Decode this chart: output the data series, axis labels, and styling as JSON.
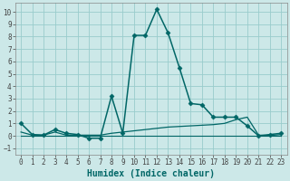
{
  "xlabel": "Humidex (Indice chaleur)",
  "background_color": "#cce8e8",
  "grid_color": "#99cccc",
  "line_color": "#006666",
  "xlim": [
    -0.5,
    23.5
  ],
  "ylim": [
    -1.5,
    10.7
  ],
  "xticks": [
    0,
    1,
    2,
    3,
    4,
    5,
    6,
    7,
    8,
    9,
    10,
    11,
    12,
    13,
    14,
    15,
    16,
    17,
    18,
    19,
    20,
    21,
    22,
    23
  ],
  "yticks": [
    -1,
    0,
    1,
    2,
    3,
    4,
    5,
    6,
    7,
    8,
    9,
    10
  ],
  "series1_x": [
    0,
    1,
    2,
    3,
    4,
    5,
    6,
    7,
    8,
    9,
    10,
    11,
    12,
    13,
    14,
    15,
    16,
    17,
    18,
    19,
    20,
    21,
    22,
    23
  ],
  "series1_y": [
    1.0,
    0.1,
    0.05,
    0.5,
    0.2,
    0.1,
    -0.2,
    -0.2,
    3.2,
    0.2,
    8.1,
    8.1,
    10.2,
    8.3,
    5.5,
    2.6,
    2.5,
    1.5,
    1.5,
    1.5,
    0.8,
    0.0,
    0.1,
    0.2
  ],
  "series2_x": [
    0,
    1,
    2,
    3,
    4,
    5,
    6,
    7,
    8,
    9,
    10,
    11,
    12,
    13,
    14,
    15,
    16,
    17,
    18,
    19,
    20,
    21,
    22,
    23
  ],
  "series2_y": [
    0.3,
    0.05,
    0.05,
    0.3,
    0.05,
    0.05,
    0.05,
    0.05,
    0.2,
    0.3,
    0.4,
    0.5,
    0.6,
    0.7,
    0.75,
    0.8,
    0.85,
    0.9,
    1.0,
    1.3,
    1.5,
    0.05,
    0.02,
    0.1
  ],
  "series3_x": [
    0,
    23
  ],
  "series3_y": [
    0.0,
    0.0
  ],
  "tick_fontsize": 5.5,
  "xlabel_fontsize": 7,
  "marker": "D",
  "markersize": 2.5,
  "linewidth1": 1.1,
  "linewidth2": 0.9,
  "linewidth3": 0.8
}
